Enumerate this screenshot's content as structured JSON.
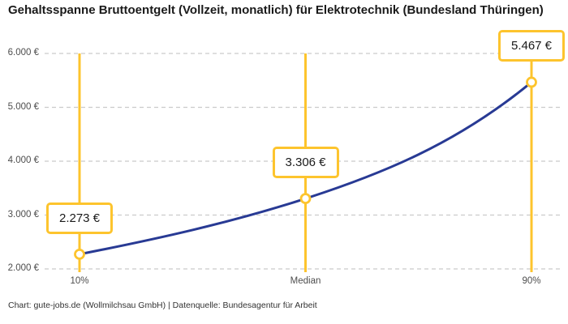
{
  "title": "Gehaltsspanne Bruttoentgelt (Vollzeit, monatlich) für Elektrotechnik (Bundesland Thüringen)",
  "footer": "Chart: gute-jobs.de (Wollmilchsau GmbH) | Datenquelle: Bundesagentur für Arbeit",
  "colors": {
    "accent_yellow": "#fdc42d",
    "line_blue": "#283a94",
    "grid_gray": "#cbcbcb",
    "title_text": "#1a1a1a",
    "axis_text": "#4d4d4d",
    "marker_fill": "#ffffff"
  },
  "chart_data": {
    "type": "line",
    "title": "Gehaltsspanne Bruttoentgelt (Vollzeit, monatlich) für Elektrotechnik (Bundesland Thüringen)",
    "categories": [
      "10%",
      "Median",
      "90%"
    ],
    "values": [
      2273,
      3306,
      5467
    ],
    "value_labels": [
      "2.273 €",
      "3.306 €",
      "5.467 €"
    ],
    "y_tick_values": [
      2000,
      3000,
      4000,
      5000,
      6000
    ],
    "y_tick_labels": [
      "2.000 €",
      "3.000 €",
      "4.000 €",
      "5.000 €",
      "6.000 €"
    ],
    "ylim": [
      2000,
      6000
    ],
    "xlabel": "",
    "ylabel": "",
    "grid": "dashed-horizontal",
    "legend": "none",
    "annotations": "vertical percentile marker lines at each category with value label callouts"
  }
}
